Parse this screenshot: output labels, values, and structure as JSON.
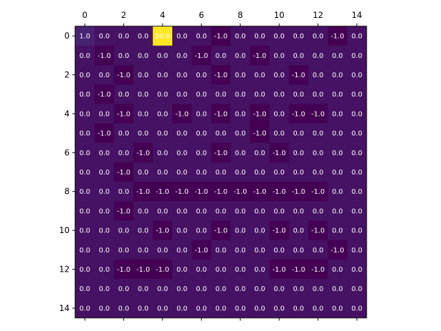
{
  "chart_data": {
    "type": "heatmap",
    "title": "",
    "xlabel": "",
    "ylabel": "",
    "colormap": "viridis",
    "value_range": [
      -1.0,
      20.0
    ],
    "x_ticks": [
      "0",
      "2",
      "4",
      "6",
      "8",
      "10",
      "12",
      "14"
    ],
    "y_ticks": [
      "0",
      "2",
      "4",
      "6",
      "8",
      "10",
      "12",
      "14"
    ],
    "x_tick_position": "top",
    "matrix": [
      [
        1.0,
        0.0,
        0.0,
        0.0,
        20.0,
        0.0,
        0.0,
        -1.0,
        0.0,
        0.0,
        0.0,
        0.0,
        0.0,
        -1.0,
        0.0
      ],
      [
        0.0,
        -1.0,
        0.0,
        0.0,
        0.0,
        0.0,
        -1.0,
        0.0,
        0.0,
        -1.0,
        0.0,
        0.0,
        0.0,
        0.0,
        0.0
      ],
      [
        0.0,
        0.0,
        -1.0,
        0.0,
        0.0,
        0.0,
        0.0,
        -1.0,
        0.0,
        0.0,
        0.0,
        -1.0,
        0.0,
        0.0,
        0.0
      ],
      [
        0.0,
        -1.0,
        0.0,
        0.0,
        0.0,
        0.0,
        0.0,
        0.0,
        0.0,
        0.0,
        0.0,
        0.0,
        0.0,
        0.0,
        0.0
      ],
      [
        0.0,
        0.0,
        -1.0,
        0.0,
        0.0,
        -1.0,
        0.0,
        -1.0,
        0.0,
        -1.0,
        0.0,
        -1.0,
        -1.0,
        0.0,
        0.0
      ],
      [
        0.0,
        -1.0,
        0.0,
        0.0,
        0.0,
        0.0,
        0.0,
        0.0,
        0.0,
        -1.0,
        0.0,
        0.0,
        0.0,
        0.0,
        0.0
      ],
      [
        0.0,
        0.0,
        0.0,
        -1.0,
        0.0,
        0.0,
        0.0,
        -1.0,
        0.0,
        0.0,
        -1.0,
        0.0,
        0.0,
        0.0,
        0.0
      ],
      [
        0.0,
        0.0,
        -1.0,
        0.0,
        0.0,
        0.0,
        0.0,
        0.0,
        0.0,
        0.0,
        0.0,
        0.0,
        0.0,
        0.0,
        0.0
      ],
      [
        0.0,
        0.0,
        0.0,
        -1.0,
        -1.0,
        -1.0,
        -1.0,
        -1.0,
        -1.0,
        -1.0,
        -1.0,
        -1.0,
        -1.0,
        0.0,
        0.0
      ],
      [
        0.0,
        0.0,
        -1.0,
        0.0,
        0.0,
        0.0,
        0.0,
        0.0,
        0.0,
        0.0,
        0.0,
        0.0,
        0.0,
        0.0,
        0.0
      ],
      [
        0.0,
        0.0,
        0.0,
        0.0,
        -1.0,
        0.0,
        0.0,
        -1.0,
        0.0,
        0.0,
        -1.0,
        0.0,
        -1.0,
        0.0,
        0.0
      ],
      [
        0.0,
        0.0,
        0.0,
        0.0,
        0.0,
        0.0,
        -1.0,
        0.0,
        0.0,
        0.0,
        0.0,
        0.0,
        0.0,
        -1.0,
        0.0
      ],
      [
        0.0,
        0.0,
        -1.0,
        -1.0,
        -1.0,
        0.0,
        0.0,
        0.0,
        0.0,
        0.0,
        -1.0,
        -1.0,
        -1.0,
        0.0,
        0.0
      ],
      [
        0.0,
        0.0,
        0.0,
        0.0,
        0.0,
        0.0,
        0.0,
        0.0,
        0.0,
        0.0,
        0.0,
        0.0,
        0.0,
        0.0,
        0.0
      ],
      [
        0.0,
        0.0,
        0.0,
        0.0,
        0.0,
        0.0,
        0.0,
        0.0,
        0.0,
        0.0,
        0.0,
        0.0,
        0.0,
        0.0,
        0.0
      ]
    ]
  }
}
